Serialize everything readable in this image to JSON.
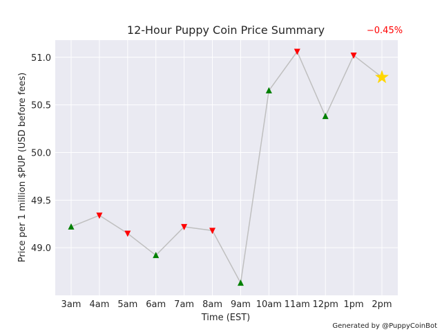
{
  "chart_data": {
    "type": "line",
    "title": "12-Hour Puppy Coin Price Summary",
    "xlabel": "Time (EST)",
    "ylabel": "Price per 1 million $PUP (USD before fees)",
    "categories": [
      "3am",
      "4am",
      "5am",
      "6am",
      "7am",
      "8am",
      "9am",
      "10am",
      "11am",
      "12pm",
      "1pm",
      "2pm"
    ],
    "values": [
      49.22,
      49.34,
      49.15,
      48.92,
      49.22,
      49.18,
      48.63,
      50.65,
      51.06,
      50.38,
      51.02,
      50.79
    ],
    "markers": [
      "up",
      "down",
      "down",
      "up",
      "down",
      "down",
      "up",
      "up",
      "down",
      "up",
      "down",
      "star"
    ],
    "ylim": [
      48.5,
      51.18
    ],
    "yticks": [
      49.0,
      49.5,
      50.0,
      50.5,
      51.0
    ],
    "ytick_labels": [
      "49.0",
      "49.5",
      "50.0",
      "50.5",
      "51.0"
    ],
    "grid": true,
    "change_label": "−0.45%",
    "credit": "Generated by @PuppyCoinBot"
  },
  "colors": {
    "plot_bg": "#eaeaf2",
    "grid": "#ffffff",
    "line": "#bfbfbf",
    "up": "#008000",
    "down": "#ff0000",
    "star": "#ffd700",
    "change": "#ff0000"
  }
}
